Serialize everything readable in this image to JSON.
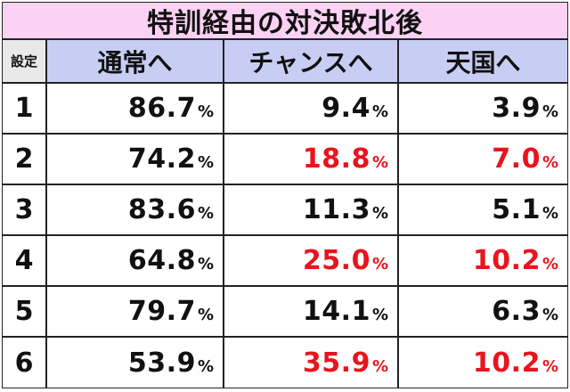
{
  "title": "特訓経由の対決敗北後",
  "header": {
    "setting": "設定",
    "col1": "通常へ",
    "col2": "チャンスへ",
    "col3": "天国へ"
  },
  "percent_sign": "%",
  "colors": {
    "highlight": "#e8141e",
    "title_bg": "#fbd1f4",
    "header_bg": "#c8cdf4"
  },
  "rows": [
    {
      "setting": "1",
      "normal": "86.7",
      "chance": "9.4",
      "heaven": "3.9",
      "chance_red": false,
      "heaven_red": false
    },
    {
      "setting": "2",
      "normal": "74.2",
      "chance": "18.8",
      "heaven": "7.0",
      "chance_red": true,
      "heaven_red": true
    },
    {
      "setting": "3",
      "normal": "83.6",
      "chance": "11.3",
      "heaven": "5.1",
      "chance_red": false,
      "heaven_red": false
    },
    {
      "setting": "4",
      "normal": "64.8",
      "chance": "25.0",
      "heaven": "10.2",
      "chance_red": true,
      "heaven_red": true
    },
    {
      "setting": "5",
      "normal": "79.7",
      "chance": "14.1",
      "heaven": "6.3",
      "chance_red": false,
      "heaven_red": false
    },
    {
      "setting": "6",
      "normal": "53.9",
      "chance": "35.9",
      "heaven": "10.2",
      "chance_red": true,
      "heaven_red": true
    }
  ]
}
